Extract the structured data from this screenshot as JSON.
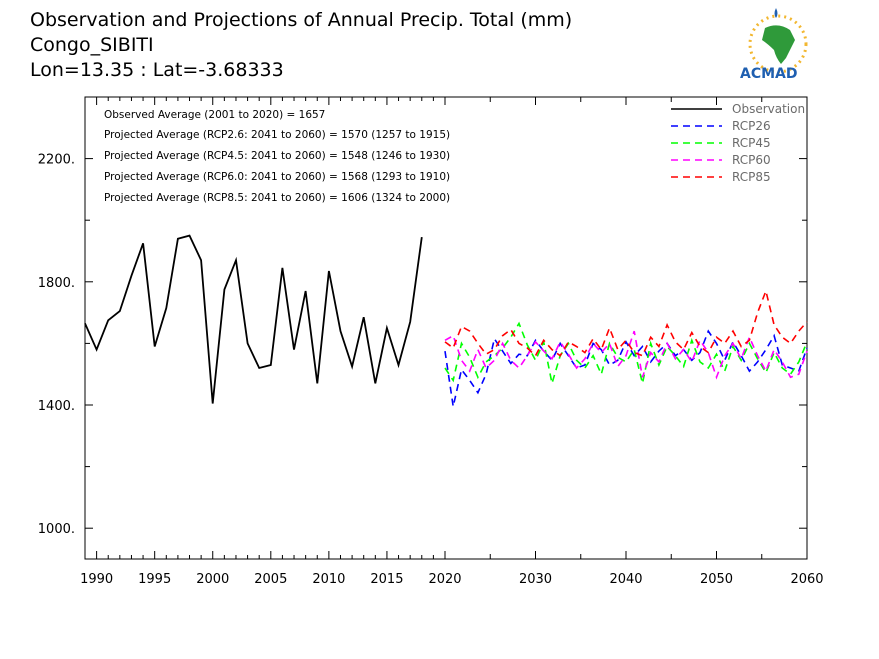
{
  "titles": [
    "Observation and Projections of Annual Precip. Total (mm)",
    "Congo_SIBITI",
    "Lon=13.35 : Lat=-3.68333"
  ],
  "logo": {
    "text": "ACMAD",
    "icon": "africa-map-icon"
  },
  "annotations": [
    "Observed Average (2001 to 2020) = 1657",
    "Projected Average (RCP2.6: 2041 to 2060) = 1570 (1257 to 1915)",
    "Projected Average (RCP4.5: 2041 to 2060) = 1548 (1246 to 1930)",
    "Projected Average (RCP6.0: 2041 to 2060) = 1568 (1293 to 1910)",
    "Projected Average (RCP8.5: 2041 to 2060) = 1606 (1324 to 2000)"
  ],
  "chart_data": {
    "type": "line",
    "title": "Observation and Projections of Annual Precip. Total (mm)",
    "xlabel": "",
    "ylabel": "",
    "xlim": [
      1989,
      2060
    ],
    "ylim": [
      900,
      2400
    ],
    "x_ticks": [
      1990,
      1995,
      2000,
      2005,
      2010,
      2015,
      2020,
      2030,
      2040,
      2050,
      2060
    ],
    "x_tick_labels": [
      "1990",
      "1995",
      "2000",
      "2005",
      "2010",
      "2015",
      "2020",
      "2030",
      "2040",
      "2050",
      "2060"
    ],
    "y_ticks": [
      1000,
      1400,
      1800,
      2200
    ],
    "y_tick_labels": [
      "1000.",
      "1400.",
      "1800.",
      "2200."
    ],
    "legend_position": "top-right",
    "grid": false,
    "series": [
      {
        "name": "Observation",
        "color": "#000000",
        "dashed": false,
        "start_year": 1989,
        "values": [
          1665,
          1580,
          1675,
          1705,
          1820,
          1925,
          1590,
          1715,
          1940,
          1950,
          1870,
          1405,
          1775,
          1870,
          1600,
          1520,
          1530,
          1845,
          1580,
          1770,
          1470,
          1835,
          1640,
          1525,
          1685,
          1470,
          1650,
          1530,
          1670,
          1945
        ]
      },
      {
        "name": "RCP26",
        "color": "#0000ff",
        "dashed": true,
        "start_year": 2020,
        "values": [
          1575,
          1395,
          1515,
          1480,
          1440,
          1500,
          1615,
          1575,
          1535,
          1565,
          1560,
          1610,
          1575,
          1545,
          1600,
          1560,
          1520,
          1530,
          1600,
          1580,
          1530,
          1545,
          1605,
          1560,
          1590,
          1540,
          1575,
          1600,
          1560,
          1580,
          1545,
          1570,
          1640,
          1600,
          1545,
          1605,
          1560,
          1510,
          1540,
          1580,
          1625,
          1530,
          1520,
          1510,
          1585
        ]
      },
      {
        "name": "RCP45",
        "color": "#00ff00",
        "dashed": true,
        "start_year": 2020,
        "values": [
          1520,
          1480,
          1600,
          1555,
          1490,
          1540,
          1560,
          1585,
          1620,
          1665,
          1595,
          1545,
          1605,
          1470,
          1560,
          1600,
          1545,
          1520,
          1560,
          1500,
          1600,
          1555,
          1540,
          1580,
          1470,
          1600,
          1530,
          1590,
          1560,
          1525,
          1610,
          1540,
          1520,
          1565,
          1510,
          1590,
          1545,
          1600,
          1550,
          1505,
          1570,
          1520,
          1500,
          1540,
          1605
        ]
      },
      {
        "name": "RCP60",
        "color": "#ff00ff",
        "dashed": true,
        "start_year": 2020,
        "values": [
          1610,
          1625,
          1545,
          1510,
          1580,
          1520,
          1545,
          1600,
          1545,
          1520,
          1560,
          1605,
          1575,
          1550,
          1605,
          1565,
          1520,
          1550,
          1600,
          1570,
          1600,
          1525,
          1560,
          1640,
          1490,
          1570,
          1540,
          1600,
          1550,
          1580,
          1540,
          1610,
          1570,
          1490,
          1560,
          1600,
          1550,
          1620,
          1560,
          1510,
          1580,
          1540,
          1490,
          1500,
          1575
        ]
      },
      {
        "name": "RCP85",
        "color": "#ff0000",
        "dashed": true,
        "start_year": 2020,
        "values": [
          1605,
          1585,
          1655,
          1640,
          1600,
          1565,
          1580,
          1625,
          1645,
          1600,
          1585,
          1560,
          1610,
          1580,
          1560,
          1605,
          1590,
          1570,
          1615,
          1580,
          1650,
          1580,
          1610,
          1570,
          1560,
          1620,
          1590,
          1660,
          1605,
          1580,
          1635,
          1590,
          1570,
          1620,
          1600,
          1640,
          1590,
          1610,
          1700,
          1770,
          1660,
          1620,
          1600,
          1640,
          1670
        ]
      }
    ]
  }
}
